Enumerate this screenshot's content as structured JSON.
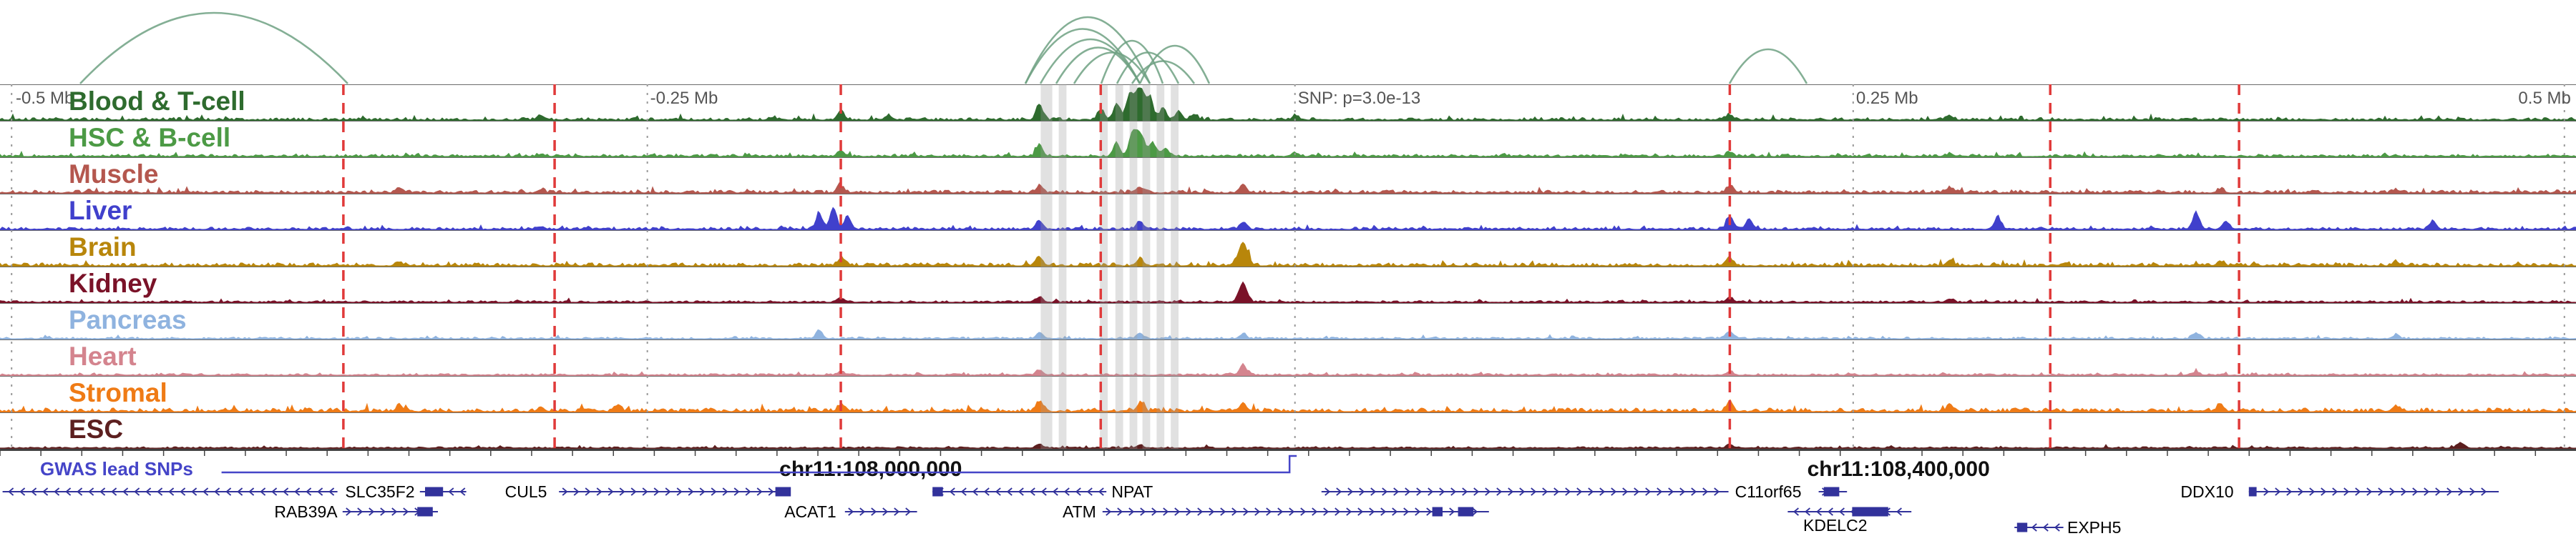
{
  "chart_data": {
    "type": "area",
    "x_axis": {
      "tick_labels": [
        "-0.5 Mb",
        "-0.25 Mb",
        "SNP: p=3.0e-13",
        "0.25 Mb",
        "0.5 Mb"
      ],
      "tick_positions": [
        0.005,
        0.2513,
        0.5027,
        0.7194,
        0.998
      ],
      "tick_aligns": [
        "left",
        "left",
        "left",
        "left",
        "right"
      ],
      "coordinate_labels": [
        {
          "text": "chr11:108,000,000",
          "x": 0.338
        },
        {
          "text": "chr11:108,400,000",
          "x": 0.737
        }
      ]
    },
    "tracks": [
      {
        "name": "Blood & T-cell",
        "color": "#2e6b2e",
        "noise": 0.09,
        "peaks": [
          [
            0.21,
            0.12
          ],
          [
            0.3,
            0.08
          ],
          [
            0.3265,
            0.28
          ],
          [
            0.345,
            0.14
          ],
          [
            0.4035,
            0.5
          ],
          [
            0.4275,
            0.32
          ],
          [
            0.4335,
            0.52
          ],
          [
            0.4385,
            0.78
          ],
          [
            0.4425,
            1.0,
            0.0018
          ],
          [
            0.4465,
            0.62
          ],
          [
            0.4515,
            0.38
          ],
          [
            0.4575,
            0.26
          ],
          [
            0.4635,
            0.18
          ],
          [
            0.503,
            0.14
          ],
          [
            0.6715,
            0.16
          ],
          [
            0.757,
            0.1
          ]
        ]
      },
      {
        "name": "HSC & B-cell",
        "color": "#4c9a45",
        "noise": 0.08,
        "peaks": [
          [
            0.21,
            0.07
          ],
          [
            0.3265,
            0.18
          ],
          [
            0.4035,
            0.38
          ],
          [
            0.4335,
            0.42
          ],
          [
            0.4395,
            0.6
          ],
          [
            0.4425,
            0.72,
            0.0018
          ],
          [
            0.4475,
            0.42
          ],
          [
            0.4525,
            0.26
          ],
          [
            0.503,
            0.1
          ],
          [
            0.6715,
            0.12
          ],
          [
            0.757,
            0.08
          ]
        ]
      },
      {
        "name": "Muscle",
        "color": "#b4574e",
        "noise": 0.1,
        "peaks": [
          [
            0.155,
            0.16
          ],
          [
            0.21,
            0.1
          ],
          [
            0.3265,
            0.2
          ],
          [
            0.4035,
            0.22
          ],
          [
            0.4425,
            0.18
          ],
          [
            0.4825,
            0.28
          ],
          [
            0.6715,
            0.2
          ],
          [
            0.757,
            0.16
          ],
          [
            0.862,
            0.12
          ],
          [
            0.93,
            0.1
          ]
        ]
      },
      {
        "name": "Liver",
        "color": "#4040cc",
        "noise": 0.08,
        "peaks": [
          [
            0.21,
            0.08
          ],
          [
            0.318,
            0.5
          ],
          [
            0.3235,
            0.68
          ],
          [
            0.329,
            0.4
          ],
          [
            0.4035,
            0.26
          ],
          [
            0.4425,
            0.24
          ],
          [
            0.4825,
            0.22
          ],
          [
            0.6715,
            0.42
          ],
          [
            0.679,
            0.3
          ],
          [
            0.7755,
            0.38
          ],
          [
            0.8525,
            0.52
          ],
          [
            0.864,
            0.26
          ],
          [
            0.9445,
            0.26
          ]
        ]
      },
      {
        "name": "Brain",
        "color": "#b8860b",
        "noise": 0.11,
        "peaks": [
          [
            0.155,
            0.12
          ],
          [
            0.3265,
            0.24
          ],
          [
            0.4035,
            0.26
          ],
          [
            0.4425,
            0.22
          ],
          [
            0.4825,
            0.72,
            0.0018
          ],
          [
            0.6715,
            0.24
          ],
          [
            0.757,
            0.18
          ],
          [
            0.862,
            0.14
          ],
          [
            0.93,
            0.12
          ]
        ]
      },
      {
        "name": "Kidney",
        "color": "#7a1228",
        "noise": 0.06,
        "peaks": [
          [
            0.3265,
            0.12
          ],
          [
            0.4035,
            0.16
          ],
          [
            0.4825,
            0.6,
            0.0016
          ],
          [
            0.6715,
            0.14
          ],
          [
            0.757,
            0.1
          ]
        ]
      },
      {
        "name": "Pancreas",
        "color": "#8fb3df",
        "noise": 0.06,
        "peaks": [
          [
            0.318,
            0.26
          ],
          [
            0.4035,
            0.2
          ],
          [
            0.4425,
            0.18
          ],
          [
            0.4825,
            0.14
          ],
          [
            0.6715,
            0.24
          ],
          [
            0.8525,
            0.18
          ],
          [
            0.93,
            0.1
          ]
        ]
      },
      {
        "name": "Heart",
        "color": "#d4848e",
        "noise": 0.06,
        "peaks": [
          [
            0.3265,
            0.12
          ],
          [
            0.4035,
            0.16
          ],
          [
            0.4825,
            0.34
          ],
          [
            0.6715,
            0.12
          ],
          [
            0.8525,
            0.1
          ]
        ]
      },
      {
        "name": "Stromal",
        "color": "#ef7b16",
        "noise": 0.13,
        "peaks": [
          [
            0.155,
            0.16
          ],
          [
            0.21,
            0.14
          ],
          [
            0.24,
            0.22
          ],
          [
            0.3265,
            0.22
          ],
          [
            0.4035,
            0.3
          ],
          [
            0.4425,
            0.24
          ],
          [
            0.4825,
            0.26
          ],
          [
            0.6715,
            0.3
          ],
          [
            0.757,
            0.22
          ],
          [
            0.862,
            0.22
          ],
          [
            0.93,
            0.18
          ]
        ]
      },
      {
        "name": "ESC",
        "color": "#5c1f1f",
        "noise": 0.05,
        "peaks": [
          [
            0.4035,
            0.12
          ],
          [
            0.4425,
            0.1
          ],
          [
            0.6715,
            0.1
          ],
          [
            0.955,
            0.16
          ]
        ]
      }
    ],
    "arcs": {
      "color": "#6fa183",
      "items": [
        [
          0.031,
          0.135,
          0.85
        ],
        [
          0.398,
          0.4465,
          0.8
        ],
        [
          0.398,
          0.4425,
          0.66
        ],
        [
          0.404,
          0.4425,
          0.54
        ],
        [
          0.41,
          0.4425,
          0.44
        ],
        [
          0.417,
          0.4465,
          0.38
        ],
        [
          0.4275,
          0.4515,
          0.52
        ],
        [
          0.4335,
          0.4575,
          0.38
        ],
        [
          0.4395,
          0.4635,
          0.28
        ],
        [
          0.4425,
          0.4695,
          0.46
        ],
        [
          0.6715,
          0.7015,
          0.42
        ]
      ]
    },
    "markers": {
      "red_dashed_x": [
        0.1333,
        0.2153,
        0.3264,
        0.4273,
        0.6715,
        0.7959,
        0.8692
      ],
      "gray_dotted_x": [
        0.0045,
        0.2513,
        0.5027,
        0.7194,
        0.9955
      ],
      "gray_bands": [
        [
          0.404,
          0.4085
        ],
        [
          0.411,
          0.414
        ],
        [
          0.427,
          0.43
        ],
        [
          0.433,
          0.436
        ],
        [
          0.4385,
          0.4415
        ],
        [
          0.4435,
          0.4465
        ],
        [
          0.449,
          0.452
        ],
        [
          0.4545,
          0.4575
        ]
      ]
    },
    "gwas": {
      "label": "GWAS lead SNPs",
      "color": "#4545c8",
      "line": [
        0.086,
        0.5006
      ]
    },
    "genes": {
      "color": "#32329b",
      "items": [
        {
          "name": "SLC35F2",
          "row": 0,
          "strand": "-",
          "label_x": 0.134,
          "segments": [
            [
              0.001,
              0.131
            ],
            [
              0.163,
              0.181
            ]
          ],
          "exons": [
            [
              0.165,
              0.172
            ]
          ]
        },
        {
          "name": "CUL5",
          "row": 0,
          "strand": "+",
          "label_x": 0.196,
          "segments": [
            [
              0.217,
              0.306
            ]
          ],
          "exons": [
            [
              0.301,
              0.307
            ]
          ]
        },
        {
          "name": "NPAT",
          "row": 0,
          "strand": "-",
          "label_x": 0.4315,
          "segments": [
            [
              0.362,
              0.4295
            ]
          ],
          "exons": [
            [
              0.362,
              0.366
            ]
          ]
        },
        {
          "name": "C11orf65",
          "row": 0,
          "strand": "+",
          "label_x": 0.6735,
          "segments": [
            [
              0.513,
              0.671
            ],
            [
              0.706,
              0.717
            ]
          ],
          "exons": [
            [
              0.708,
              0.714
            ]
          ]
        },
        {
          "name": "DDX10",
          "row": 0,
          "strand": "+",
          "label_x": 0.8465,
          "segments": [
            [
              0.873,
              0.97
            ]
          ],
          "exons": [
            [
              0.873,
              0.876
            ]
          ]
        },
        {
          "name": "RAB39A",
          "row": 1,
          "strand": "+",
          "label_x": 0.1065,
          "segments": [
            [
              0.133,
              0.17
            ]
          ],
          "exons": [
            [
              0.162,
              0.168
            ]
          ]
        },
        {
          "name": "ACAT1",
          "row": 1,
          "strand": "+",
          "label_x": 0.3045,
          "segments": [
            [
              0.328,
              0.356
            ]
          ],
          "exons": []
        },
        {
          "name": "ATM",
          "row": 1,
          "strand": "+",
          "label_x": 0.4125,
          "segments": [
            [
              0.428,
              0.578
            ]
          ],
          "exons": [
            [
              0.556,
              0.56
            ],
            [
              0.566,
              0.572
            ]
          ]
        },
        {
          "name": "KDELC2",
          "row": 1,
          "strand": "-",
          "label_x": 0.7,
          "label_below": true,
          "segments": [
            [
              0.694,
              0.742
            ]
          ],
          "exons": [
            [
              0.719,
              0.733
            ]
          ]
        },
        {
          "name": "EXPH5",
          "row": 2,
          "strand": "-",
          "label_x": 0.8025,
          "segments": [
            [
              0.782,
              0.801
            ]
          ],
          "exons": [
            [
              0.783,
              0.787
            ]
          ]
        }
      ]
    }
  }
}
